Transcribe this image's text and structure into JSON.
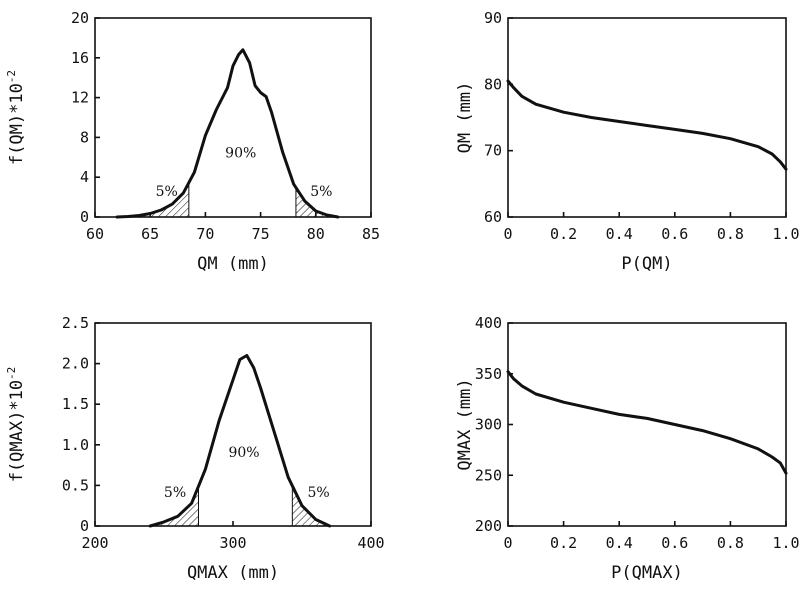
{
  "chart_data": [
    {
      "type": "area",
      "xlabel": "QM (mm)",
      "ylabel": "f(QM)*10",
      "ylabel_exponent": "-2",
      "xlim": [
        60,
        85
      ],
      "ylim": [
        0,
        20
      ],
      "xticks": [
        "60",
        "65",
        "70",
        "75",
        "80",
        "85"
      ],
      "yticks": [
        "0",
        "4",
        "8",
        "12",
        "16",
        "20"
      ],
      "annotations": [
        {
          "text": "5%",
          "x": 66.5,
          "y": 2.1
        },
        {
          "text": "90%",
          "x": 73.2,
          "y": 6.0
        },
        {
          "text": "5%",
          "x": 80.5,
          "y": 2.1
        }
      ],
      "shaded_below": 68.5,
      "shaded_above": 78.2,
      "x": [
        62,
        63,
        64,
        65,
        66,
        67,
        68,
        69,
        70,
        71,
        72,
        72.5,
        73,
        73.4,
        74,
        74.5,
        75,
        75.5,
        76,
        77,
        78,
        79,
        80,
        81,
        82
      ],
      "y": [
        0,
        0.05,
        0.15,
        0.35,
        0.7,
        1.3,
        2.4,
        4.5,
        8.2,
        10.8,
        13.0,
        15.2,
        16.3,
        16.8,
        15.5,
        13.2,
        12.5,
        12.1,
        10.5,
        6.5,
        3.3,
        1.6,
        0.6,
        0.2,
        0
      ]
    },
    {
      "type": "line",
      "xlabel": "P(QM)",
      "ylabel": "QM (mm)",
      "xlim": [
        0,
        1
      ],
      "ylim": [
        60,
        90
      ],
      "xticks": [
        "0",
        "0.2",
        "0.4",
        "0.6",
        "0.8",
        "1.0"
      ],
      "yticks": [
        "60",
        "70",
        "80",
        "90"
      ],
      "x": [
        0,
        0.02,
        0.05,
        0.1,
        0.2,
        0.3,
        0.4,
        0.5,
        0.6,
        0.7,
        0.8,
        0.9,
        0.95,
        0.98,
        1.0
      ],
      "y": [
        80.5,
        79.5,
        78.2,
        77.0,
        75.8,
        75.0,
        74.4,
        73.8,
        73.2,
        72.6,
        71.8,
        70.6,
        69.5,
        68.3,
        67.2
      ]
    },
    {
      "type": "area",
      "xlabel": "QMAX (mm)",
      "ylabel": "f(QMAX)*10",
      "ylabel_exponent": "-2",
      "xlim": [
        200,
        400
      ],
      "ylim": [
        0,
        2.5
      ],
      "xticks": [
        "200",
        "300",
        "400"
      ],
      "yticks": [
        "0",
        "0.5",
        "1.0",
        "1.5",
        "2.0",
        "2.5"
      ],
      "annotations": [
        {
          "text": "5%",
          "x": 258,
          "y": 0.36
        },
        {
          "text": "90%",
          "x": 308,
          "y": 0.85
        },
        {
          "text": "5%",
          "x": 362,
          "y": 0.36
        }
      ],
      "shaded_below": 275,
      "shaded_above": 343,
      "x": [
        240,
        250,
        260,
        270,
        280,
        290,
        300,
        305,
        310,
        315,
        320,
        330,
        340,
        350,
        360,
        370
      ],
      "y": [
        0,
        0.05,
        0.12,
        0.28,
        0.7,
        1.3,
        1.8,
        2.05,
        2.1,
        1.95,
        1.7,
        1.15,
        0.6,
        0.25,
        0.08,
        0
      ]
    },
    {
      "type": "line",
      "xlabel": "P(QMAX)",
      "ylabel": "QMAX (mm)",
      "xlim": [
        0,
        1
      ],
      "ylim": [
        200,
        400
      ],
      "xticks": [
        "0",
        "0.2",
        "0.4",
        "0.6",
        "0.8",
        "1.0"
      ],
      "yticks": [
        "200",
        "250",
        "300",
        "350",
        "400"
      ],
      "x": [
        0,
        0.02,
        0.05,
        0.1,
        0.2,
        0.3,
        0.4,
        0.5,
        0.6,
        0.7,
        0.8,
        0.9,
        0.95,
        0.98,
        1.0
      ],
      "y": [
        352,
        345,
        338,
        330,
        322,
        316,
        310,
        306,
        300,
        294,
        286,
        276,
        268,
        262,
        252
      ]
    }
  ]
}
